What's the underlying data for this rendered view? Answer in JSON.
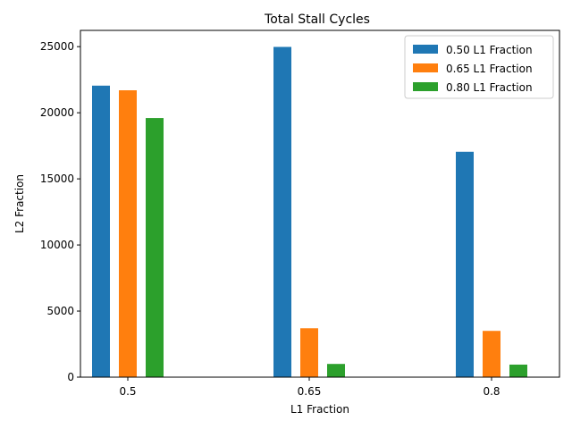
{
  "chart_data": {
    "type": "bar",
    "title": "Total Stall Cycles",
    "xlabel": "L1 Fraction",
    "ylabel": "L2 Fraction",
    "categories": [
      "0.5",
      "0.65",
      "0.8"
    ],
    "series": [
      {
        "name": "0.50 L1 Fraction",
        "color": "#1f77b4",
        "values": [
          22050,
          24980,
          17050
        ]
      },
      {
        "name": "0.65 L1 Fraction",
        "color": "#ff7f0e",
        "values": [
          21700,
          3700,
          3500
        ]
      },
      {
        "name": "0.80 L1 Fraction",
        "color": "#2ca02c",
        "values": [
          19600,
          1000,
          950
        ]
      }
    ],
    "ylim": [
      0,
      26230
    ],
    "yticks": [
      0,
      5000,
      10000,
      15000,
      20000,
      25000
    ],
    "grid": false,
    "legend_position": "top-right"
  }
}
